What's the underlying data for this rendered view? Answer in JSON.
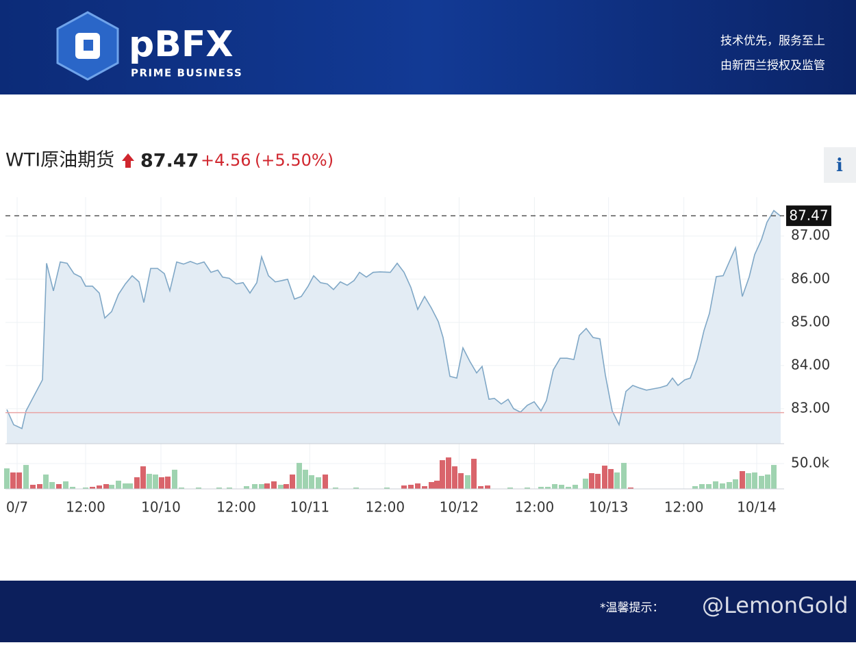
{
  "header": {
    "logo": "pBFX",
    "logo_sub": "PRIME BUSINESS",
    "slogan_1": "技术优先，服务至上",
    "slogan_2": "由新西兰授权及监管"
  },
  "chart_data": {
    "type": "line",
    "title": "WTI原油期货",
    "last_price": 87.47,
    "change": "+4.56",
    "change_pct": "(+5.50%)",
    "info_button": "i",
    "series": [
      {
        "color": "#7fa7c6",
        "x": [
          -1.65,
          -0.55,
          0.77,
          1.43,
          4.07,
          4.73,
          5.83,
          6.93,
          8.03,
          9.13,
          10.23,
          11.0,
          12.1,
          13.2,
          14.08,
          15.18,
          16.28,
          17.38,
          18.48,
          19.58,
          20.35,
          21.45,
          22.55,
          23.65,
          24.53,
          25.63,
          26.73,
          27.83,
          28.93,
          30.03,
          31.13,
          32.23,
          33.0,
          34.1,
          35.2,
          36.3,
          37.4,
          38.5,
          39.27,
          40.37,
          41.47,
          42.57,
          43.45,
          44.55,
          45.65,
          46.75,
          47.63,
          48.73,
          49.83,
          50.82,
          51.92,
          53.02,
          54.12,
          55.0,
          56.1,
          57.2,
          58.3,
          59.95,
          61.05,
          62.15,
          63.25,
          64.35,
          65.45,
          66.55,
          67.65,
          68.42,
          69.52,
          70.62,
          71.61,
          72.71,
          73.81,
          74.69,
          75.79,
          76.67,
          77.77,
          78.87,
          79.75,
          80.85,
          81.95,
          83.05,
          84.15,
          85.03,
          86.13,
          87.23,
          88.33,
          89.43,
          90.31,
          91.41,
          92.51,
          93.61,
          94.49,
          95.59,
          96.69,
          97.79,
          98.89,
          99.99,
          101.09,
          102.19,
          103.29,
          104.39,
          105.27,
          106.15,
          107.25,
          108.13,
          109.23,
          110.33,
          111.21,
          112.31,
          113.41,
          114.51,
          115.39,
          116.49,
          117.59,
          118.47,
          119.57,
          120.45,
          121.55,
          122.65
        ],
        "values": [
          82.98,
          82.63,
          82.54,
          82.95,
          83.67,
          86.37,
          85.73,
          86.4,
          86.37,
          86.13,
          86.05,
          85.84,
          85.84,
          85.68,
          85.1,
          85.25,
          85.65,
          85.89,
          86.08,
          85.94,
          85.46,
          86.25,
          86.25,
          86.13,
          85.73,
          86.4,
          86.35,
          86.41,
          86.35,
          86.4,
          86.16,
          86.21,
          86.05,
          86.02,
          85.89,
          85.92,
          85.68,
          85.92,
          86.52,
          86.08,
          85.94,
          85.97,
          86.0,
          85.54,
          85.6,
          85.84,
          86.08,
          85.92,
          85.89,
          85.76,
          85.94,
          85.86,
          85.97,
          86.16,
          86.05,
          86.16,
          86.17,
          86.16,
          86.37,
          86.16,
          85.81,
          85.3,
          85.6,
          85.33,
          85.02,
          84.65,
          83.75,
          83.71,
          84.41,
          84.1,
          83.83,
          83.98,
          83.22,
          83.24,
          83.11,
          83.22,
          83.0,
          82.92,
          83.08,
          83.16,
          82.95,
          83.19,
          83.9,
          84.17,
          84.17,
          84.14,
          84.7,
          84.86,
          84.65,
          84.62,
          83.78,
          82.95,
          82.63,
          83.4,
          83.54,
          83.48,
          83.43,
          83.46,
          83.49,
          83.54,
          83.71,
          83.54,
          83.67,
          83.71,
          84.14,
          84.81,
          85.21,
          86.06,
          86.08,
          86.44,
          86.73,
          85.6,
          86.05,
          86.57,
          86.92,
          87.32,
          87.59,
          87.46
        ]
      }
    ],
    "xlim": [
      -1.87,
      123.2
    ],
    "xticks": [
      {
        "value": 0,
        "label": "0/7"
      },
      {
        "value": 11.0,
        "label": "12:00"
      },
      {
        "value": 23.1,
        "label": "10/10"
      },
      {
        "value": 35.2,
        "label": "12:00"
      },
      {
        "value": 47.0,
        "label": "10/11"
      },
      {
        "value": 59.1,
        "label": "12:00"
      },
      {
        "value": 71.0,
        "label": "10/12"
      },
      {
        "value": 83.1,
        "label": "12:00"
      },
      {
        "value": 95.0,
        "label": "10/13"
      },
      {
        "value": 107.1,
        "label": "12:00"
      },
      {
        "value": 118.8,
        "label": "10/14"
      }
    ],
    "ylim": [
      82.19,
      87.9
    ],
    "yticks": [
      {
        "value": 83,
        "label": "83.00"
      },
      {
        "value": 84,
        "label": "84.00"
      },
      {
        "value": 85,
        "label": "85.00"
      },
      {
        "value": 86,
        "label": "86.00"
      },
      {
        "value": 87,
        "label": "87.00"
      }
    ],
    "reference_line": {
      "value": 82.91,
      "color": "#e9a3a3"
    },
    "grid": true,
    "volume": {
      "ylim": [
        0,
        73000
      ],
      "yticks": [
        {
          "value": 50000,
          "label": "50.0k"
        }
      ],
      "up": {
        "color": "#9fd3b0",
        "x": [
          -1.65,
          1.43,
          4.62,
          5.61,
          7.81,
          8.91,
          11.0,
          15.18,
          16.28,
          17.38,
          18.15,
          21.23,
          22.22,
          25.3,
          26.4,
          29.15,
          32.45,
          34.1,
          36.85,
          38.17,
          39.27,
          42.35,
          45.32,
          46.31,
          47.3,
          48.4,
          51.15,
          54.45,
          59.4,
          72.38,
          79.2,
          81.95,
          84.15,
          85.25,
          86.35,
          87.45,
          88.55,
          89.65,
          91.3,
          96.36,
          97.46,
          108.9,
          110.0,
          111.1,
          112.2,
          113.3,
          114.4,
          115.39,
          117.48,
          118.47,
          119.57,
          120.56,
          121.55
        ],
        "values": [
          40500,
          47250,
          28350,
          13500,
          14850,
          4050,
          2700,
          8100,
          16200,
          10800,
          10800,
          29700,
          28350,
          37800,
          2700,
          2700,
          2700,
          2700,
          5400,
          9450,
          9450,
          8100,
          51300,
          37800,
          27000,
          22950,
          2700,
          2700,
          2700,
          27000,
          2700,
          2700,
          4050,
          4050,
          9450,
          8100,
          4050,
          8100,
          20250,
          32400,
          51300,
          5400,
          9450,
          9450,
          14850,
          10800,
          13500,
          18900,
          31050,
          32400,
          25650,
          28350,
          47250
        ]
      },
      "down": {
        "color": "#d9646b",
        "x": [
          -0.66,
          0.33,
          2.53,
          3.63,
          6.71,
          12.1,
          13.2,
          14.3,
          19.25,
          20.24,
          23.21,
          24.2,
          40.15,
          41.25,
          43.23,
          44.22,
          49.5,
          62.15,
          63.25,
          64.35,
          65.45,
          66.55,
          67.43,
          68.31,
          69.3,
          70.29,
          71.28,
          73.37,
          74.47,
          75.57,
          92.29,
          93.28,
          94.38,
          95.37,
          98.56,
          116.49
        ],
        "values": [
          32400,
          32400,
          8100,
          9450,
          9450,
          4050,
          6750,
          9450,
          22950,
          44550,
          22950,
          24300,
          10800,
          14850,
          9450,
          28350,
          28350,
          6750,
          8100,
          10800,
          5400,
          13500,
          16200,
          56700,
          62100,
          44550,
          31050,
          59400,
          5400,
          6750,
          31050,
          29700,
          45900,
          39150,
          2700,
          35100
        ]
      }
    }
  },
  "footer": {
    "notice": "*温馨提示：",
    "watermark": "@LemonGold"
  }
}
